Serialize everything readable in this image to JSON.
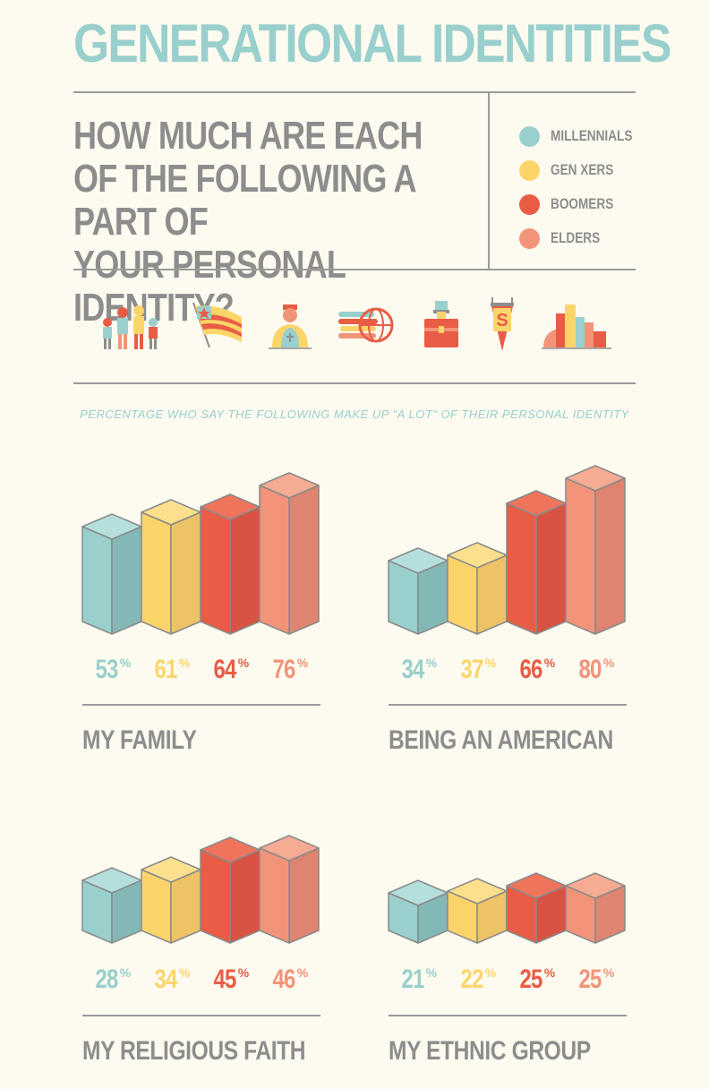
{
  "header": {
    "title": "GENERATIONAL IDENTITIES",
    "question_lines": [
      "HOW MUCH ARE EACH",
      "OF THE FOLLOWING A PART OF",
      "YOUR PERSONAL IDENTITY?"
    ]
  },
  "legend": [
    {
      "label": "MILLENNIALS",
      "color": "#99cfcc"
    },
    {
      "label": "GEN XERS",
      "color": "#fcd56a"
    },
    {
      "label": "BOOMERS",
      "color": "#e95c45"
    },
    {
      "label": "ELDERS",
      "color": "#f29479"
    }
  ],
  "icons": [
    "family-icon",
    "american-flag-icon",
    "religious-figure-icon",
    "ethnic-group-globe-icon",
    "briefcase-icon",
    "education-pennant-icon",
    "city-icon"
  ],
  "subtitle": "PERCENTAGE WHO SAY THE FOLLOWING MAKE UP \"A LOT\" OF THEIR PERSONAL IDENTITY",
  "chart_data": [
    {
      "type": "bar",
      "title": "MY FAMILY",
      "categories": [
        "MILLENNIALS",
        "GEN XERS",
        "BOOMERS",
        "ELDERS"
      ],
      "values": [
        53,
        61,
        64,
        76
      ],
      "labels": [
        "53%",
        "61%",
        "64%",
        "76%"
      ]
    },
    {
      "type": "bar",
      "title": "BEING AN AMERICAN",
      "categories": [
        "MILLENNIALS",
        "GEN XERS",
        "BOOMERS",
        "ELDERS"
      ],
      "values": [
        34,
        37,
        66,
        80
      ],
      "labels": [
        "34%",
        "37%",
        "66%",
        "80%"
      ]
    },
    {
      "type": "bar",
      "title": "MY RELIGIOUS FAITH",
      "categories": [
        "MILLENNIALS",
        "GEN XERS",
        "BOOMERS",
        "ELDERS"
      ],
      "values": [
        28,
        34,
        45,
        46
      ],
      "labels": [
        "28%",
        "34%",
        "45%",
        "46%"
      ]
    },
    {
      "type": "bar",
      "title": "MY ETHNIC GROUP",
      "categories": [
        "MILLENNIALS",
        "GEN XERS",
        "BOOMERS",
        "ELDERS"
      ],
      "values": [
        21,
        22,
        25,
        25
      ],
      "labels": [
        "21%",
        "22%",
        "25%",
        "25%"
      ]
    }
  ],
  "colors": {
    "millennials_front": "#99cfcc",
    "millennials_side": "#84b8b6",
    "millennials_top": "#b4dfdc",
    "genx_front": "#fcd56a",
    "genx_side": "#eec266",
    "genx_top": "#fde08d",
    "boomers_front": "#e95c45",
    "boomers_side": "#d85343",
    "boomers_top": "#f0745c",
    "elders_front": "#f29479",
    "elders_side": "#df8470",
    "elders_top": "#f6ab93",
    "outline": "#8a8a8a",
    "text_gray": "#8d8d8d"
  }
}
